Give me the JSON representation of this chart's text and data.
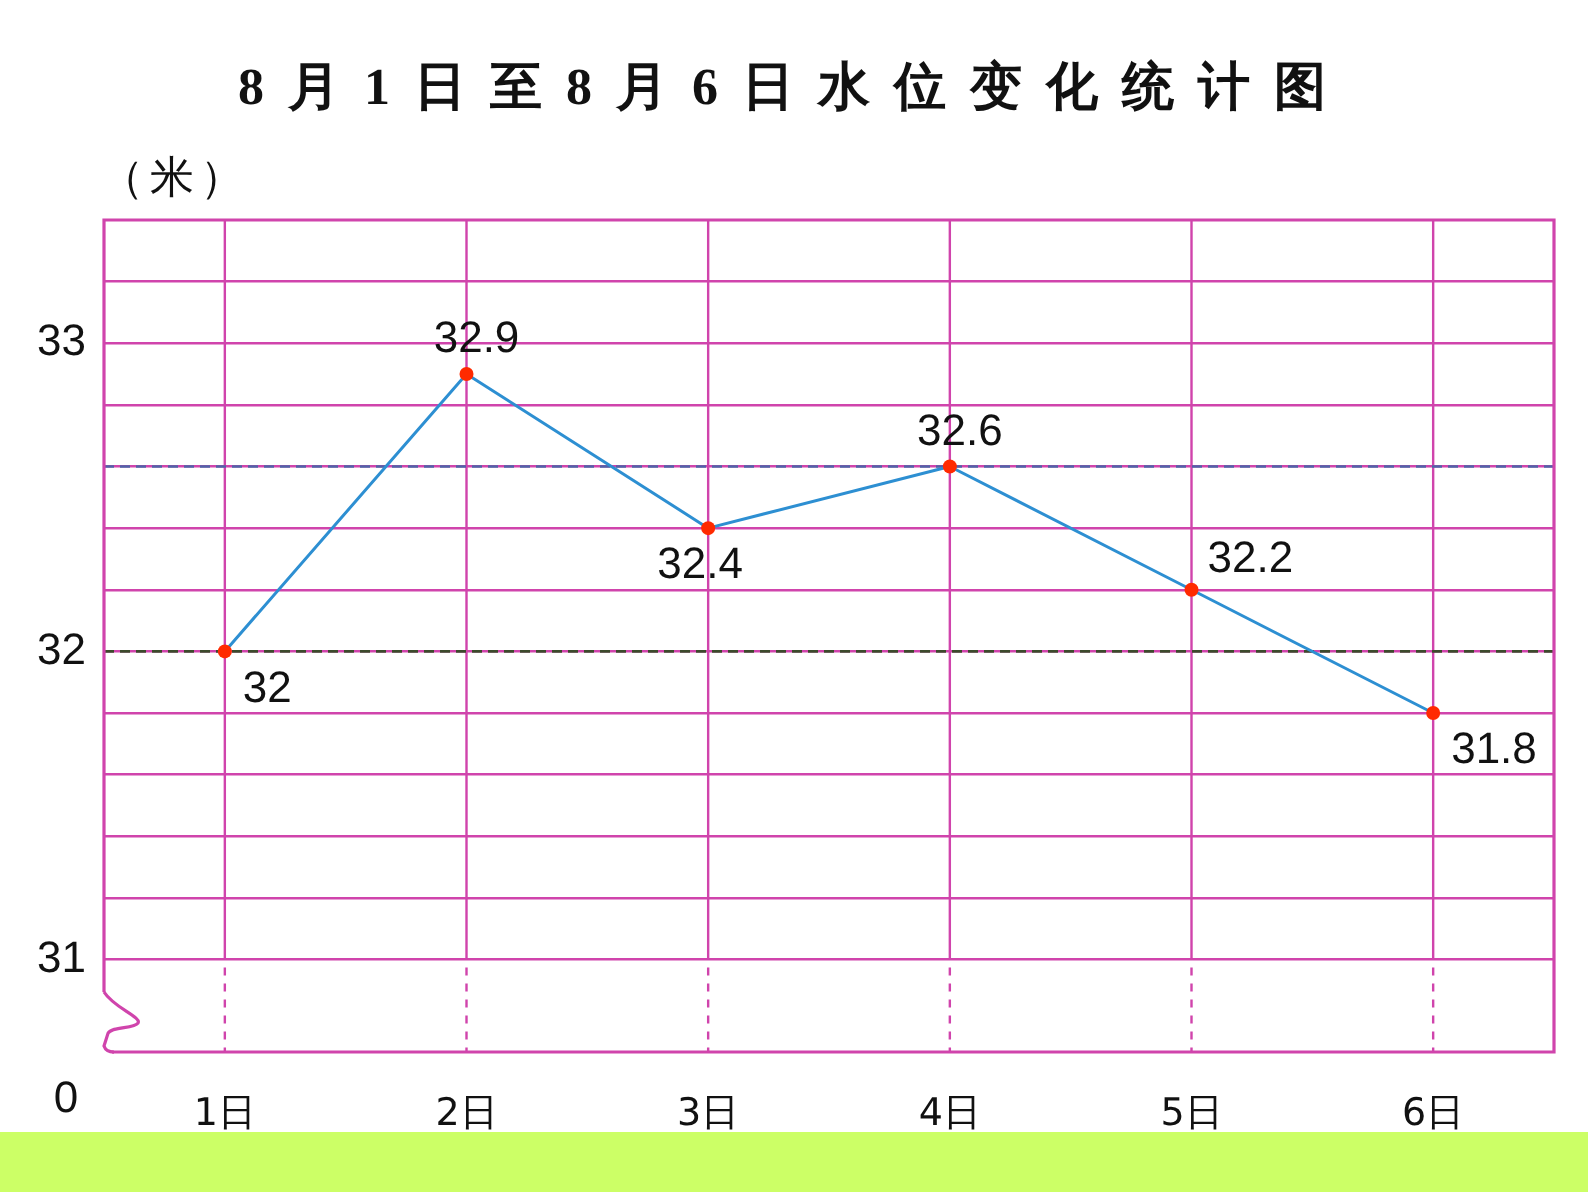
{
  "chart_data": {
    "type": "line",
    "title": "8月1日至8月6日水位变化统计图",
    "ylabel": "（米）",
    "categories": [
      "1日",
      "2日",
      "3日",
      "4日",
      "5日",
      "6日"
    ],
    "series": [
      {
        "color": "#2d8fd2",
        "colors": [
          "#ff2a00",
          "#ff2a00",
          "#ff2a00",
          "#ff2a00",
          "#ff2a00",
          "#ff2a00"
        ],
        "values": [
          32,
          32.9,
          32.4,
          32.6,
          32.2,
          31.8
        ]
      }
    ],
    "marker": "circle",
    "data_labels": true,
    "grid": true,
    "ylim": [
      30.7,
      33.4
    ],
    "yticks": [
      31,
      {
        "value": 31.2,
        "label": null
      },
      {
        "value": 31.4,
        "label": null
      },
      {
        "value": 31.6,
        "label": null
      },
      {
        "value": 31.8,
        "label": null
      },
      32,
      {
        "value": 32.2,
        "label": null
      },
      {
        "value": 32.4,
        "label": null
      },
      {
        "value": 32.6,
        "label": null
      },
      {
        "value": 32.8,
        "label": null
      },
      33,
      {
        "value": 33.2,
        "label": null
      }
    ],
    "ref_lines": [
      {
        "axis": "y",
        "value": 32.6,
        "color": "#4f64a8",
        "line_style": "dashed"
      },
      {
        "axis": "y",
        "value": 32,
        "color": "#3c4a2c",
        "line_style": "dashed"
      }
    ],
    "annotations": [
      "0"
    ]
  }
}
